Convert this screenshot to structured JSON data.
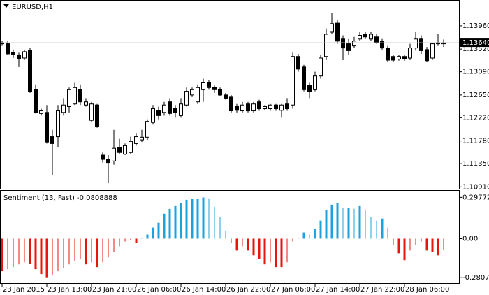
{
  "chart_data": [
    {
      "type": "candlestick",
      "title": "EURUSD,H1",
      "categories": [
        "23 Jan 2015",
        null,
        null,
        null,
        null,
        null,
        null,
        null,
        "23 Jan 13:00",
        null,
        null,
        null,
        null,
        null,
        null,
        null,
        "23 Jan 21:00",
        null,
        null,
        null,
        null,
        null,
        null,
        null,
        "26 Jan 06:00",
        null,
        null,
        null,
        null,
        null,
        null,
        null,
        "26 Jan 14:00",
        null,
        null,
        null,
        null,
        null,
        null,
        null,
        "26 Jan 22:00",
        null,
        null,
        null,
        null,
        null,
        null,
        null,
        "27 Jan 06:00",
        null,
        null,
        null,
        null,
        null,
        null,
        null,
        "27 Jan 14:00",
        null,
        null,
        null,
        null,
        null,
        null,
        null,
        "27 Jan 22:00",
        null,
        null,
        null,
        null,
        null,
        null,
        null,
        "28 Jan 06:00",
        null,
        null,
        null,
        null,
        null,
        null,
        null
      ],
      "open": [
        1.1364,
        1.1362,
        1.1346,
        1.1341,
        1.1335,
        1.1349,
        1.1275,
        1.123,
        1.1232,
        1.1186,
        1.1186,
        1.1232,
        1.1243,
        1.1248,
        1.1275,
        1.1246,
        1.1217,
        1.1246,
        1.1151,
        1.1143,
        1.114,
        1.1166,
        1.1153,
        1.1156,
        1.1173,
        1.118,
        1.1185,
        1.1213,
        1.1235,
        1.1232,
        1.1252,
        1.1239,
        1.1226,
        1.1246,
        1.1265,
        1.1252,
        1.1275,
        1.1288,
        1.1279,
        1.1275,
        1.1265,
        1.1261,
        1.1243,
        1.1235,
        1.1248,
        1.1235,
        1.1252,
        1.1239,
        1.1239,
        1.1246,
        1.1236,
        1.1248,
        1.1246,
        1.1338,
        1.1318,
        1.1283,
        1.1275,
        1.1301,
        1.1338,
        1.1384,
        1.1401,
        1.1371,
        1.1362,
        1.1358,
        1.1371,
        1.138,
        1.1371,
        1.1375,
        1.1367,
        1.1354,
        1.1338,
        1.1333,
        1.1338,
        1.1335,
        1.1354,
        1.1371,
        1.1351,
        1.1335,
        1.1362,
        1.1362
      ],
      "high": [
        1.1367,
        1.1367,
        1.1351,
        1.1345,
        1.1351,
        1.1354,
        1.1285,
        1.1239,
        1.1246,
        1.1199,
        1.1246,
        1.1259,
        1.1279,
        1.1288,
        1.1285,
        1.1259,
        1.1252,
        1.1248,
        1.1156,
        1.1151,
        1.1199,
        1.1182,
        1.1173,
        1.1186,
        1.1193,
        1.1199,
        1.1219,
        1.1246,
        1.1243,
        1.1252,
        1.1259,
        1.1246,
        1.1259,
        1.1279,
        1.1279,
        1.1285,
        1.1296,
        1.1293,
        1.1283,
        1.1279,
        1.1269,
        1.1265,
        1.1248,
        1.1252,
        1.1252,
        1.1252,
        1.1256,
        1.1246,
        1.1248,
        1.1248,
        1.1248,
        1.1259,
        1.1345,
        1.1343,
        1.1322,
        1.1288,
        1.1309,
        1.1341,
        1.1391,
        1.142,
        1.1407,
        1.1378,
        1.1371,
        1.1375,
        1.1384,
        1.1384,
        1.1384,
        1.138,
        1.1371,
        1.1358,
        1.1341,
        1.1341,
        1.1341,
        1.1362,
        1.1384,
        1.1378,
        1.1356,
        1.1364,
        1.138,
        1.137
      ],
      "low": [
        1.1358,
        1.1341,
        1.1335,
        1.1318,
        1.1331,
        1.1269,
        1.123,
        1.1226,
        1.1173,
        1.1114,
        1.1166,
        1.1226,
        1.1232,
        1.1246,
        1.1246,
        1.1243,
        1.1213,
        1.1203,
        1.1137,
        1.1098,
        1.1133,
        1.1153,
        1.1151,
        1.1153,
        1.1169,
        1.1176,
        1.118,
        1.1209,
        1.1219,
        1.1226,
        1.1226,
        1.1222,
        1.1222,
        1.1243,
        1.1261,
        1.1248,
        1.1252,
        1.1275,
        1.1269,
        1.1263,
        1.1256,
        1.1232,
        1.1232,
        1.1232,
        1.1232,
        1.1232,
        1.1235,
        1.1236,
        1.1235,
        1.1235,
        1.1222,
        1.1235,
        1.1239,
        1.1309,
        1.1272,
        1.1259,
        1.1272,
        1.1296,
        1.1331,
        1.138,
        1.1362,
        1.1331,
        1.1341,
        1.1354,
        1.1367,
        1.1371,
        1.1367,
        1.1362,
        1.1351,
        1.1327,
        1.1327,
        1.133,
        1.133,
        1.1331,
        1.1349,
        1.1343,
        1.1327,
        1.1331,
        1.1358,
        1.1356
      ],
      "close": [
        1.1362,
        1.1343,
        1.1341,
        1.1333,
        1.1347,
        1.1272,
        1.1232,
        1.1235,
        1.1176,
        1.1173,
        1.1235,
        1.1246,
        1.1275,
        1.1279,
        1.1252,
        1.1252,
        1.1248,
        1.1206,
        1.1143,
        1.1137,
        1.1164,
        1.1156,
        1.1169,
        1.1177,
        1.1186,
        1.1185,
        1.1215,
        1.1239,
        1.1226,
        1.1246,
        1.123,
        1.1232,
        1.1248,
        1.1272,
        1.1275,
        1.1279,
        1.1288,
        1.1279,
        1.1275,
        1.1265,
        1.1259,
        1.1235,
        1.1236,
        1.1246,
        1.1235,
        1.1248,
        1.1239,
        1.1243,
        1.1246,
        1.1239,
        1.1246,
        1.1239,
        1.1338,
        1.1314,
        1.1275,
        1.1272,
        1.1301,
        1.1335,
        1.138,
        1.14,
        1.1367,
        1.1354,
        1.1349,
        1.1367,
        1.1378,
        1.1375,
        1.138,
        1.1364,
        1.1354,
        1.1331,
        1.1331,
        1.1338,
        1.1333,
        1.1354,
        1.1371,
        1.1349,
        1.133,
        1.1362,
        1.1364,
        1.1364
      ],
      "up_color": "#ffffff",
      "down_color": "#000000",
      "ylim": [
        1.10875,
        1.14435
      ],
      "yticks": [
        {
          "value": 1.1396,
          "label": "1.13960"
        },
        {
          "value": 1.1352,
          "label": "1.13520"
        },
        {
          "value": 1.1309,
          "label": "1.13090"
        },
        {
          "value": 1.1265,
          "label": "1.12650"
        },
        {
          "value": 1.1222,
          "label": "1.12220"
        },
        {
          "value": 1.1178,
          "label": "1.11780"
        },
        {
          "value": 1.1135,
          "label": "1.11350"
        },
        {
          "value": 1.1091,
          "label": "1.10910"
        }
      ],
      "current_price": {
        "value": 1.1364,
        "label": "1.13640"
      }
    },
    {
      "type": "histogram",
      "title": "Sentiment (13, Fast) -0.0808888",
      "values": [
        -0.235,
        -0.22,
        -0.205,
        -0.185,
        -0.17,
        -0.18,
        -0.22,
        -0.255,
        -0.278,
        -0.26,
        -0.235,
        -0.21,
        -0.185,
        -0.16,
        -0.145,
        -0.185,
        -0.17,
        -0.205,
        -0.17,
        -0.135,
        -0.095,
        -0.055,
        -0.02,
        -0.01,
        -0.03,
        0.003,
        0.03,
        0.08,
        0.115,
        0.18,
        0.215,
        0.24,
        0.255,
        0.28,
        0.285,
        0.29,
        0.297,
        0.29,
        0.23,
        0.155,
        0.055,
        -0.03,
        -0.085,
        -0.055,
        -0.085,
        -0.12,
        -0.145,
        -0.185,
        -0.17,
        -0.205,
        -0.205,
        -0.17,
        -0.02,
        0.005,
        0.045,
        0.03,
        0.07,
        0.13,
        0.205,
        0.245,
        0.255,
        0.22,
        0.22,
        0.215,
        0.24,
        0.205,
        0.155,
        0.13,
        0.145,
        0.08,
        -0.045,
        -0.105,
        -0.155,
        -0.085,
        -0.045,
        -0.02,
        -0.085,
        -0.095,
        -0.12,
        -0.081
      ],
      "positive_color": "#1fa2dc",
      "negative_color": "#e8150c",
      "ylim": [
        -0.32,
        0.345
      ],
      "yticks": [
        0.297721,
        {
          "value": 0,
          "label": "0.00"
        },
        -0.280773
      ]
    }
  ]
}
